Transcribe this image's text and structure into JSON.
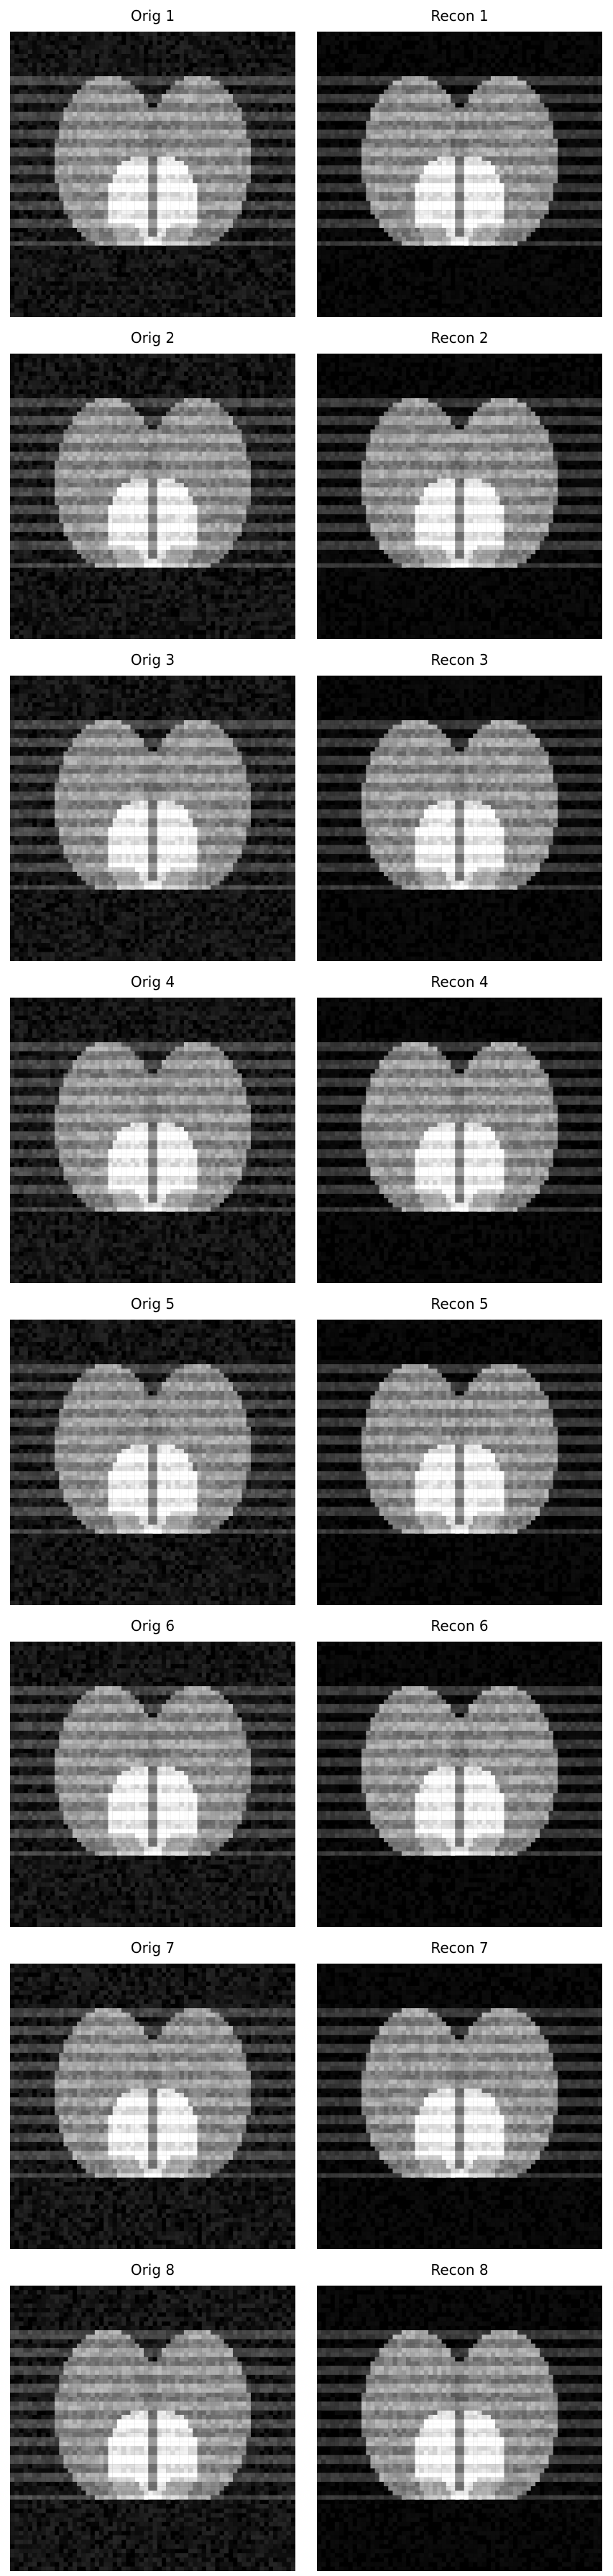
{
  "figure": {
    "rows": [
      {
        "orig_title": "Orig 1",
        "recon_title": "Recon 1"
      },
      {
        "orig_title": "Orig 2",
        "recon_title": "Recon 2"
      },
      {
        "orig_title": "Orig 3",
        "recon_title": "Recon 3"
      },
      {
        "orig_title": "Orig 4",
        "recon_title": "Recon 4"
      },
      {
        "orig_title": "Orig 5",
        "recon_title": "Recon 5"
      },
      {
        "orig_title": "Orig 6",
        "recon_title": "Recon 6"
      },
      {
        "orig_title": "Orig 7",
        "recon_title": "Recon 7"
      },
      {
        "orig_title": "Orig 8",
        "recon_title": "Recon 8"
      }
    ],
    "colors": {
      "background": "#000000",
      "ellipse": "#7a7a7a",
      "ellipse_overlap": "#5f5f5f",
      "bright_region": "#e6e6e6",
      "stripe_highlight": "#a0a0a0"
    }
  }
}
